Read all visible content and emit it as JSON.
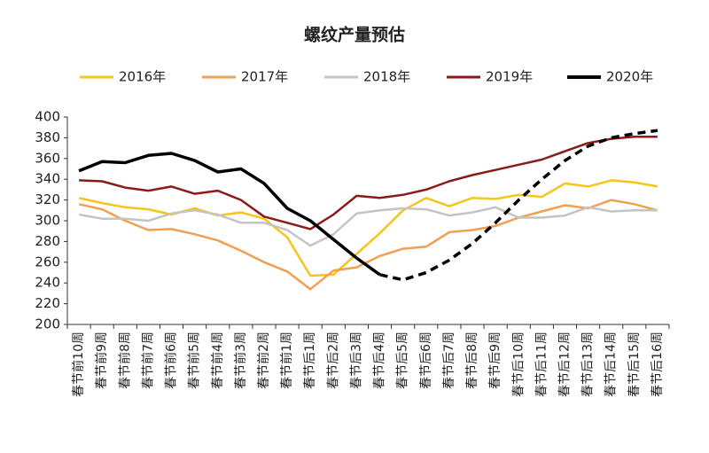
{
  "chart_data": {
    "type": "line",
    "title": "螺纹产量预估",
    "categories": [
      "春节前10周",
      "春节前9周",
      "春节前8周",
      "春节前7周",
      "春节前6周",
      "春节前5周",
      "春节前4周",
      "春节前3周",
      "春节前2周",
      "春节前1周",
      "春节后1周",
      "春节后2周",
      "春节后3周",
      "春节后4周",
      "春节后5周",
      "春节后6周",
      "春节后7周",
      "春节后8周",
      "春节后9周",
      "春节后10周",
      "春节后11周",
      "春节后12周",
      "春节后13周",
      "春节后14周",
      "春节后15周",
      "春节后16周"
    ],
    "series": [
      {
        "name": "2016年",
        "color": "#f5c518",
        "values": [
          322,
          317,
          313,
          311,
          306,
          312,
          305,
          308,
          302,
          284,
          247,
          248,
          268,
          288,
          310,
          322,
          314,
          322,
          321,
          325,
          323,
          336,
          333,
          339,
          337,
          333
        ]
      },
      {
        "name": "2017年",
        "color": "#f0a050",
        "values": [
          316,
          311,
          300,
          291,
          292,
          287,
          281,
          271,
          260,
          251,
          234,
          252,
          255,
          266,
          273,
          275,
          289,
          291,
          295,
          303,
          309,
          315,
          312,
          320,
          316,
          310
        ]
      },
      {
        "name": "2018年",
        "color": "#c4c4c4",
        "values": [
          306,
          302,
          302,
          300,
          307,
          310,
          306,
          298,
          298,
          291,
          276,
          287,
          307,
          310,
          312,
          311,
          305,
          308,
          313,
          303,
          303,
          305,
          313,
          309,
          310,
          310
        ]
      },
      {
        "name": "2019年",
        "color": "#8b1a1a",
        "values": [
          339,
          338,
          332,
          329,
          333,
          326,
          329,
          320,
          304,
          298,
          292,
          306,
          324,
          322,
          325,
          330,
          338,
          344,
          349,
          354,
          359,
          367,
          375,
          379,
          381,
          381
        ]
      },
      {
        "name": "2020年",
        "color": "#000000",
        "dashed_from": "春节后4周",
        "values": [
          348,
          357,
          356,
          363,
          365,
          358,
          347,
          350,
          336,
          312,
          300,
          282,
          264,
          248,
          243,
          250,
          262,
          278,
          298,
          320,
          340,
          358,
          372,
          380,
          384,
          387
        ]
      }
    ],
    "ylim": [
      200,
      400
    ],
    "yticks": [
      200,
      220,
      240,
      260,
      280,
      300,
      320,
      340,
      360,
      380,
      400
    ],
    "grid": false
  }
}
